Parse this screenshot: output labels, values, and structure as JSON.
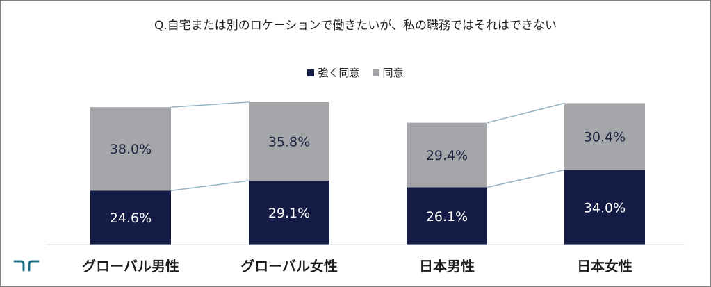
{
  "title": "Q.自宅または別のロケーションで働きたいが、私の職務ではそれはできない",
  "legend": {
    "strong": {
      "label": "強く同意",
      "color": "#141c45"
    },
    "agree": {
      "label": "同意",
      "color": "#a5a6aa"
    }
  },
  "logo_icon": "company-logo-icon",
  "chart_data": {
    "type": "bar",
    "stacked": true,
    "title": "Q.自宅または別のロケーションで働きたいが、私の職務ではそれはできない",
    "categories": [
      "グローバル男性",
      "グローバル女性",
      "日本男性",
      "日本女性"
    ],
    "series": [
      {
        "name": "強く同意",
        "values": [
          24.6,
          29.1,
          26.1,
          34.0
        ],
        "labels": [
          "24.6%",
          "29.1%",
          "26.1%",
          "34.0%"
        ],
        "color": "#141c45",
        "label_color": "#ffffff"
      },
      {
        "name": "同意",
        "values": [
          38.0,
          35.8,
          29.4,
          30.4
        ],
        "labels": [
          "38.0%",
          "35.8%",
          "29.4%",
          "30.4%"
        ],
        "color": "#a5a6aa",
        "label_color": "#1c2240"
      }
    ],
    "connector_color": "#8fb3c4",
    "legend_position": "top-center",
    "grid": false,
    "xlabel": "",
    "ylabel": ""
  }
}
